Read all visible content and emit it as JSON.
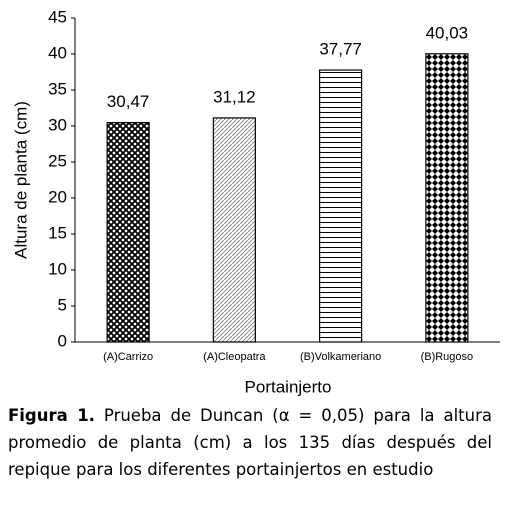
{
  "chart_data": {
    "type": "bar",
    "y_label": "Altura de planta  (cm)",
    "x_label": "Portainjerto",
    "categories": [
      "(A)Carrizo",
      "(A)Cleopatra",
      "(B)Volkameriano",
      "(B)Rugoso"
    ],
    "values": [
      30.47,
      31.12,
      37.77,
      40.03
    ],
    "value_labels": [
      "30,47",
      "31,12",
      "37,77",
      "40,03"
    ],
    "color": "#000000",
    "ylim": [
      0,
      45
    ],
    "yticks": [
      0,
      5,
      10,
      15,
      20,
      25,
      30,
      35,
      40,
      45
    ],
    "grid": false
  },
  "caption": {
    "label": "Figura 1.",
    "text": "Prueba de Duncan (α = 0,05) para la altura promedio de planta (cm) a los 135 días después del repique para los diferentes portainjertos en estudio"
  }
}
